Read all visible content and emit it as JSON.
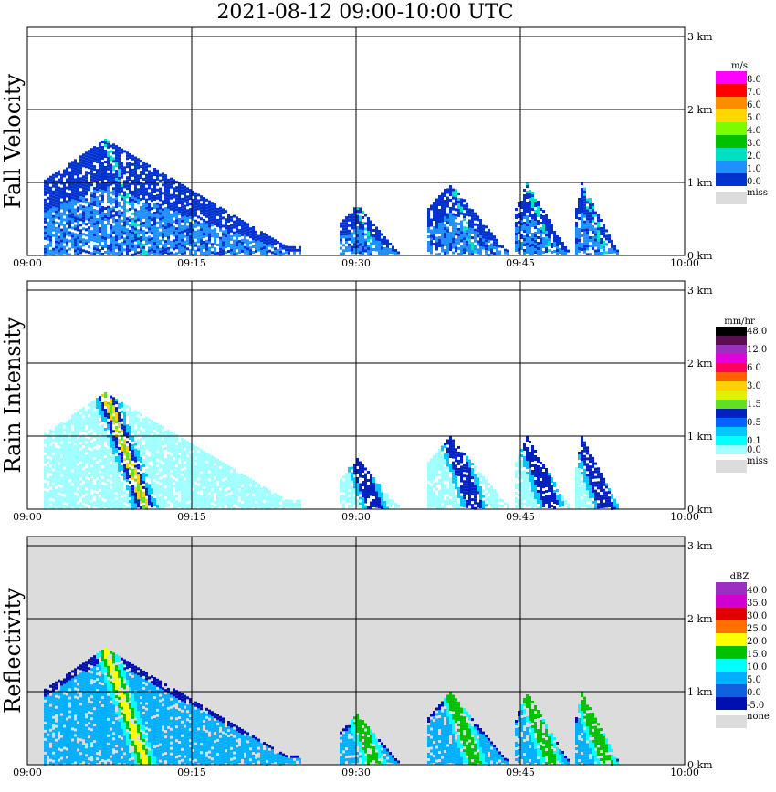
{
  "title": "2021-08-12   09:00-10:00 UTC",
  "time_ticks": [
    "09:00",
    "09:15",
    "09:30",
    "09:45",
    "10:00"
  ],
  "height_ticks": [
    "0 km",
    "1 km",
    "2 km",
    "3 km"
  ],
  "panels": [
    {
      "ylabel": "Fall Velocity",
      "unit": "m/s",
      "background": "#ffffff",
      "colorbar": [
        {
          "label": "8.0",
          "color": "#ff00ff"
        },
        {
          "label": "7.0",
          "color": "#ff0000"
        },
        {
          "label": "6.0",
          "color": "#ff8c00"
        },
        {
          "label": "5.0",
          "color": "#ffd700"
        },
        {
          "label": "4.0",
          "color": "#7cfc00"
        },
        {
          "label": "3.0",
          "color": "#00c000"
        },
        {
          "label": "2.0",
          "color": "#00e0c0"
        },
        {
          "label": "1.0",
          "color": "#1e90ff"
        },
        {
          "label": "0.0",
          "color": "#0032d0"
        }
      ],
      "miss_label": "miss",
      "miss_color": "#dcdcdc"
    },
    {
      "ylabel": "Rain Intensity",
      "unit": "mm/hr",
      "background": "#ffffff",
      "colorbar": [
        {
          "label": "48.0",
          "color": "#000000"
        },
        {
          "label": "",
          "color": "#5a1050"
        },
        {
          "label": "12.0",
          "color": "#9b30c0"
        },
        {
          "label": "",
          "color": "#e000e0"
        },
        {
          "label": "6.0",
          "color": "#ff0060"
        },
        {
          "label": "",
          "color": "#ff6000"
        },
        {
          "label": "3.0",
          "color": "#ffd000"
        },
        {
          "label": "",
          "color": "#e0f000"
        },
        {
          "label": "1.5",
          "color": "#60e020"
        },
        {
          "label": "",
          "color": "#0020c0"
        },
        {
          "label": "0.5",
          "color": "#0064ff"
        },
        {
          "label": "",
          "color": "#00c8ff"
        },
        {
          "label": "0.1",
          "color": "#00ffff"
        },
        {
          "label": "0.0",
          "color": "#a0ffff"
        }
      ],
      "miss_label": "miss",
      "miss_color": "#dcdcdc"
    },
    {
      "ylabel": "Reflectivity",
      "unit": "dBZ",
      "background": "#dcdcdc",
      "colorbar": [
        {
          "label": "40.0",
          "color": "#9b30c0"
        },
        {
          "label": "35.0",
          "color": "#d000d0"
        },
        {
          "label": "30.0",
          "color": "#e00000"
        },
        {
          "label": "25.0",
          "color": "#ff7000"
        },
        {
          "label": "20.0",
          "color": "#ffff00"
        },
        {
          "label": "15.0",
          "color": "#00c000"
        },
        {
          "label": "10.0",
          "color": "#00ffff"
        },
        {
          "label": "5.0",
          "color": "#00b0ff"
        },
        {
          "label": "0.0",
          "color": "#1060e0"
        },
        {
          "label": "-5.0",
          "color": "#0010b0"
        }
      ],
      "miss_label": "none",
      "miss_color": "#dcdcdc"
    }
  ],
  "chart_data": {
    "type": "heatmap",
    "title": "2021-08-12   09:00-10:00 UTC",
    "x_unit": "UTC",
    "x_range": [
      "09:00",
      "10:00"
    ],
    "y_unit": "km",
    "y_range": [
      0,
      3
    ],
    "grid": true,
    "rain_cells": [
      {
        "start_min": 1.5,
        "end_min": 25.0,
        "peak_min": 7.0,
        "top_km": 1.6
      },
      {
        "start_min": 28.5,
        "end_min": 34.0,
        "peak_min": 30.0,
        "top_km": 0.7
      },
      {
        "start_min": 36.5,
        "end_min": 44.0,
        "peak_min": 38.5,
        "top_km": 1.0
      },
      {
        "start_min": 44.5,
        "end_min": 49.5,
        "peak_min": 45.5,
        "top_km": 1.0
      },
      {
        "start_min": 50.0,
        "end_min": 54.0,
        "peak_min": 50.5,
        "top_km": 1.0
      }
    ]
  }
}
